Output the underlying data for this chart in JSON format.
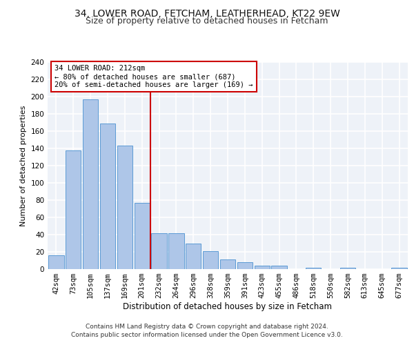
{
  "title1": "34, LOWER ROAD, FETCHAM, LEATHERHEAD, KT22 9EW",
  "title2": "Size of property relative to detached houses in Fetcham",
  "xlabel": "Distribution of detached houses by size in Fetcham",
  "ylabel": "Number of detached properties",
  "categories": [
    "42sqm",
    "73sqm",
    "105sqm",
    "137sqm",
    "169sqm",
    "201sqm",
    "232sqm",
    "264sqm",
    "296sqm",
    "328sqm",
    "359sqm",
    "391sqm",
    "423sqm",
    "455sqm",
    "486sqm",
    "518sqm",
    "550sqm",
    "582sqm",
    "613sqm",
    "645sqm",
    "677sqm"
  ],
  "values": [
    16,
    138,
    197,
    169,
    143,
    77,
    42,
    42,
    30,
    21,
    11,
    8,
    4,
    4,
    0,
    2,
    0,
    2,
    0,
    0,
    2
  ],
  "bar_color": "#aec6e8",
  "bar_edge_color": "#5b9bd5",
  "vline_x": 5.5,
  "vline_color": "#cc0000",
  "annotation_line1": "34 LOWER ROAD: 212sqm",
  "annotation_line2": "← 80% of detached houses are smaller (687)",
  "annotation_line3": "20% of semi-detached houses are larger (169) →",
  "annotation_box_color": "#cc0000",
  "footer1": "Contains HM Land Registry data © Crown copyright and database right 2024.",
  "footer2": "Contains public sector information licensed under the Open Government Licence v3.0.",
  "ylim": [
    0,
    240
  ],
  "yticks": [
    0,
    20,
    40,
    60,
    80,
    100,
    120,
    140,
    160,
    180,
    200,
    220,
    240
  ],
  "background_color": "#eef2f8",
  "grid_color": "#ffffff",
  "title1_fontsize": 10,
  "title2_fontsize": 9,
  "xlabel_fontsize": 8.5,
  "ylabel_fontsize": 8,
  "tick_fontsize": 7.5,
  "annotation_fontsize": 7.5,
  "footer_fontsize": 6.5
}
